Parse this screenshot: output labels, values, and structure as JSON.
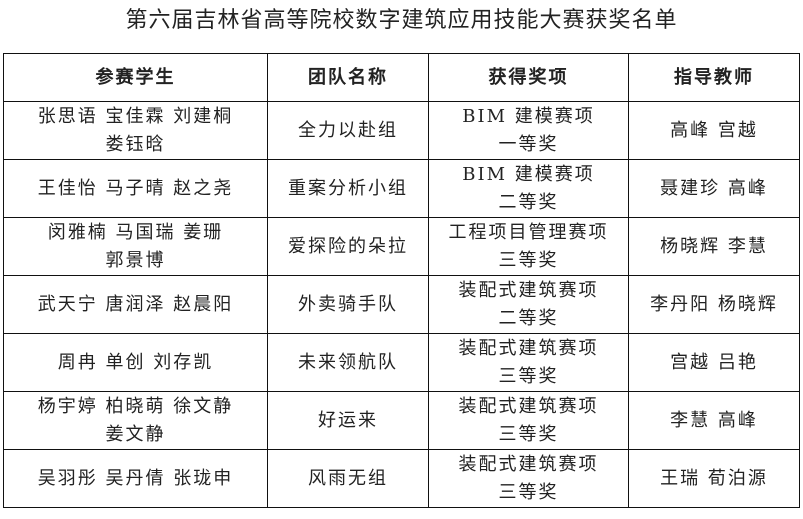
{
  "title": "第六届吉林省高等院校数字建筑应用技能大赛获奖名单",
  "headers": [
    "参赛学生",
    "团队名称",
    "获得奖项",
    "指导教师"
  ],
  "rows": [
    {
      "students": [
        "张思语 宝佳霖 刘建桐",
        "娄钰晗"
      ],
      "team": "全力以赴组",
      "award": [
        "BIM 建模赛项",
        "一等奖"
      ],
      "advisors": "高峰 宫越"
    },
    {
      "students": [
        "王佳怡 马子晴 赵之尧"
      ],
      "team": "重案分析小组",
      "award": [
        "BIM 建模赛项",
        "二等奖"
      ],
      "advisors": "聂建珍 高峰"
    },
    {
      "students": [
        "闵雅楠 马国瑞 姜珊",
        "郭景博"
      ],
      "team": "爱探险的朵拉",
      "award": [
        "工程项目管理赛项",
        "三等奖"
      ],
      "advisors": "杨晓辉 李慧"
    },
    {
      "students": [
        "武天宁 唐润泽 赵晨阳"
      ],
      "team": "外卖骑手队",
      "award": [
        "装配式建筑赛项",
        "二等奖"
      ],
      "advisors": "李丹阳 杨晓辉"
    },
    {
      "students": [
        "周冉 单创 刘存凯"
      ],
      "team": "未来领航队",
      "award": [
        "装配式建筑赛项",
        "三等奖"
      ],
      "advisors": "宫越 吕艳"
    },
    {
      "students": [
        "杨宇婷 柏晓萌 徐文静",
        "姜文静"
      ],
      "team": "好运来",
      "award": [
        "装配式建筑赛项",
        "三等奖"
      ],
      "advisors": "李慧 高峰"
    },
    {
      "students": [
        "吴羽彤 吴丹倩 张珑申"
      ],
      "team": "风雨无组",
      "award": [
        "装配式建筑赛项",
        "三等奖"
      ],
      "advisors": "王瑞 荀泊源"
    }
  ]
}
